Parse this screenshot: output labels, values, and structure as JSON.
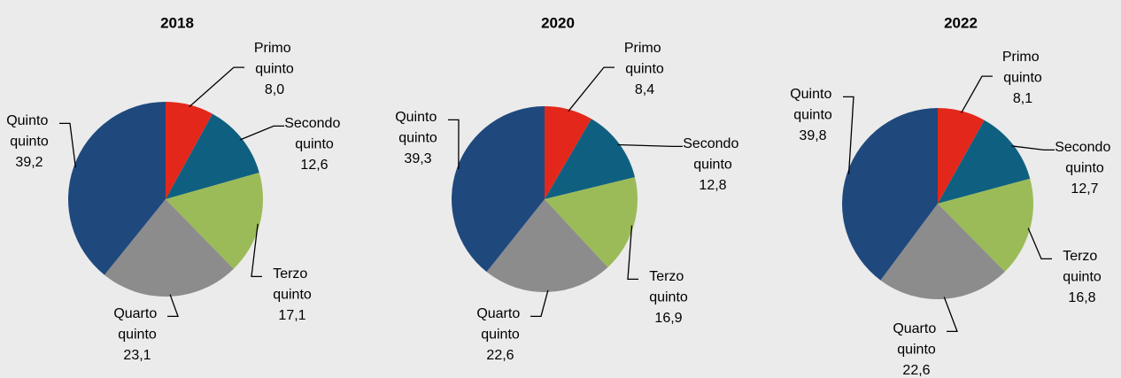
{
  "chart_data": [
    {
      "type": "pie",
      "title": "2018",
      "categories": [
        "Primo quinto",
        "Secondo quinto",
        "Terzo quinto",
        "Quarto quinto",
        "Quinto quinto"
      ],
      "values": [
        8.0,
        12.6,
        17.1,
        23.1,
        39.2
      ],
      "value_labels": [
        "8,0",
        "12,6",
        "17,1",
        "23,1",
        "39,2"
      ],
      "colors": [
        "#e3281b",
        "#0f6080",
        "#9bbb59",
        "#8c8c8c",
        "#1f497d"
      ]
    },
    {
      "type": "pie",
      "title": "2020",
      "categories": [
        "Primo quinto",
        "Secondo quinto",
        "Terzo quinto",
        "Quarto quinto",
        "Quinto quinto"
      ],
      "values": [
        8.4,
        12.8,
        16.9,
        22.6,
        39.3
      ],
      "value_labels": [
        "8,4",
        "12,8",
        "16,9",
        "22,6",
        "39,3"
      ],
      "colors": [
        "#e3281b",
        "#0f6080",
        "#9bbb59",
        "#8c8c8c",
        "#1f497d"
      ]
    },
    {
      "type": "pie",
      "title": "2022",
      "categories": [
        "Primo quinto",
        "Secondo quinto",
        "Terzo quinto",
        "Quarto quinto",
        "Quinto quinto"
      ],
      "values": [
        8.1,
        12.7,
        16.8,
        22.6,
        39.8
      ],
      "value_labels": [
        "8,1",
        "12,7",
        "16,8",
        "22,6",
        "39,8"
      ],
      "colors": [
        "#e3281b",
        "#0f6080",
        "#9bbb59",
        "#8c8c8c",
        "#1f497d"
      ]
    }
  ]
}
